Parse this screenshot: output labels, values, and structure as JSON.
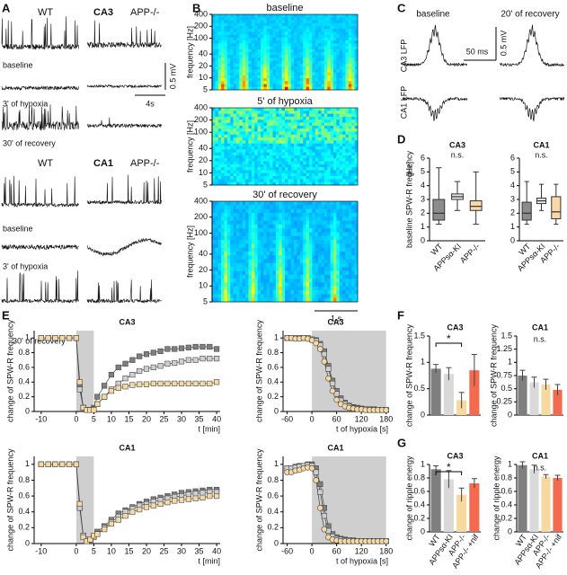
{
  "panel_labels": [
    "A",
    "B",
    "C",
    "D",
    "E",
    "F",
    "G"
  ],
  "panel_a": {
    "ca3": {
      "title": "CA3",
      "genotypes": [
        "WT",
        "APP-/-"
      ],
      "conditions": [
        "baseline",
        "3' of hypoxia",
        "30' of recovery"
      ]
    },
    "ca1": {
      "title": "CA1",
      "genotypes": [
        "WT",
        "APP-/-"
      ],
      "conditions": [
        "baseline",
        "3' of hypoxia",
        "30' of recovery"
      ]
    },
    "scale_voltage": "0.5 mV",
    "scale_time": "4s"
  },
  "panel_b": {
    "scale_time": "1 s"
  },
  "panel_c": {
    "conditions": [
      "baseline",
      "20' of recovery"
    ],
    "rows": [
      "CA3 LFP",
      "CA1 LFP"
    ],
    "scale_time": "50 ms",
    "scale_voltage": "0.5 mV"
  },
  "chart_data": [
    {
      "type": "spectrogram",
      "title": "baseline",
      "ylabel": "frequency [Hz]",
      "ylim": [
        5,
        400
      ],
      "yticks": [
        5,
        10,
        20,
        40,
        100,
        200,
        400
      ],
      "log_y": true
    },
    {
      "type": "spectrogram",
      "title": "5' of hypoxia",
      "ylabel": "frequency [Hz]",
      "ylim": [
        5,
        400
      ],
      "yticks": [
        5,
        10,
        20,
        40,
        100,
        200,
        400
      ],
      "log_y": true
    },
    {
      "type": "spectrogram",
      "title": "30' of recovery",
      "ylabel": "frequency [Hz]",
      "ylim": [
        5,
        400
      ],
      "yticks": [
        5,
        10,
        20,
        40,
        100,
        200,
        400
      ],
      "log_y": true
    },
    {
      "type": "box",
      "title": "CA3",
      "ylabel": "baseline SPW-R frequency",
      "yunit": "[Hz]",
      "annotation": "n.s.",
      "categories": [
        "WT",
        "APPsα-KI",
        "APP-/-"
      ],
      "whislo": [
        1.2,
        2.2,
        1.2
      ],
      "q1": [
        1.5,
        3.0,
        2.2
      ],
      "med": [
        2.0,
        3.2,
        2.5
      ],
      "q3": [
        3.0,
        3.4,
        2.9
      ],
      "whishi": [
        5.3,
        4.3,
        5.0
      ],
      "colors": [
        "#8c8c8c",
        "#e6e6e6",
        "#fad9a8"
      ],
      "ylim": [
        0,
        6
      ],
      "yticks": [
        0,
        1,
        2,
        3,
        4,
        5,
        6
      ]
    },
    {
      "type": "box",
      "title": "CA1",
      "annotation": "n.s.",
      "categories": [
        "WT",
        "APPsα-KI",
        "APP-/-"
      ],
      "whislo": [
        1.2,
        2.2,
        1.2
      ],
      "q1": [
        1.5,
        2.7,
        1.6
      ],
      "med": [
        2.0,
        2.9,
        2.1
      ],
      "q3": [
        2.8,
        3.1,
        3.2
      ],
      "whishi": [
        4.3,
        4.1,
        4.1
      ],
      "colors": [
        "#8c8c8c",
        "#e6e6e6",
        "#fad9a8"
      ],
      "ylim": [
        0,
        6
      ],
      "yticks": [
        0,
        1,
        2,
        3,
        4,
        5,
        6
      ]
    },
    {
      "type": "line",
      "title": "CA3",
      "ylabel": "change of SPW-R frequency",
      "xlabel": "t [min]",
      "shaded_x": [
        0,
        5
      ],
      "x": [
        -10,
        -8,
        -6,
        -4,
        -2,
        0,
        1,
        2,
        3,
        4,
        5,
        6,
        8,
        10,
        12,
        14,
        16,
        18,
        20,
        22,
        24,
        26,
        28,
        30,
        32,
        34,
        36,
        38,
        40
      ],
      "series": [
        {
          "color": "#7f7f7f",
          "marker": "square",
          "values": [
            1,
            1,
            1,
            1,
            1,
            1,
            0.35,
            0.05,
            0.02,
            0.02,
            0.05,
            0.2,
            0.35,
            0.5,
            0.6,
            0.65,
            0.7,
            0.75,
            0.78,
            0.8,
            0.82,
            0.85,
            0.85,
            0.86,
            0.87,
            0.88,
            0.88,
            0.88,
            0.85
          ]
        },
        {
          "color": "#cfcfcf",
          "marker": "square",
          "values": [
            1,
            1,
            1,
            1,
            1,
            1,
            0.3,
            0.05,
            0.02,
            0.02,
            0.03,
            0.1,
            0.2,
            0.3,
            0.38,
            0.45,
            0.5,
            0.55,
            0.58,
            0.6,
            0.62,
            0.65,
            0.66,
            0.68,
            0.7,
            0.7,
            0.72,
            0.72,
            0.72
          ]
        },
        {
          "color": "#f7d9a0",
          "marker": "square",
          "values": [
            1,
            1,
            1,
            1,
            1,
            1,
            0.4,
            0.05,
            0.02,
            0.02,
            0.02,
            0.1,
            0.2,
            0.28,
            0.32,
            0.34,
            0.36,
            0.37,
            0.37,
            0.38,
            0.38,
            0.38,
            0.38,
            0.38,
            0.38,
            0.38,
            0.38,
            0.38,
            0.4
          ]
        }
      ],
      "xlim": [
        -12,
        41
      ],
      "xticks": [
        -10,
        0,
        5,
        10,
        15,
        20,
        25,
        30,
        35,
        40
      ],
      "ylim": [
        0,
        1.1
      ],
      "yticks": [
        0,
        0.2,
        0.4,
        0.6,
        0.8,
        1
      ]
    },
    {
      "type": "line",
      "title": "CA3",
      "ylabel": "change of SPW-R frequency",
      "xlabel": "t of hypoxia [s]",
      "shaded_x": [
        0,
        180
      ],
      "x": [
        -60,
        -50,
        -40,
        -30,
        -20,
        -10,
        0,
        10,
        20,
        30,
        40,
        50,
        60,
        70,
        80,
        90,
        100,
        110,
        120,
        130,
        140,
        150,
        160,
        170,
        180
      ],
      "series": [
        {
          "color": "#7f7f7f",
          "marker": "square",
          "values": [
            1,
            1,
            1,
            1,
            1,
            1,
            0.98,
            0.97,
            0.92,
            0.82,
            0.62,
            0.42,
            0.28,
            0.18,
            0.12,
            0.08,
            0.06,
            0.05,
            0.04,
            0.03,
            0.03,
            0.03,
            0.02,
            0.02,
            0.02
          ]
        },
        {
          "color": "#cfcfcf",
          "marker": "square",
          "values": [
            1,
            1,
            1,
            1,
            1,
            1,
            0.98,
            0.96,
            0.9,
            0.78,
            0.58,
            0.38,
            0.24,
            0.15,
            0.1,
            0.07,
            0.05,
            0.04,
            0.03,
            0.03,
            0.02,
            0.02,
            0.02,
            0.02,
            0.02
          ]
        },
        {
          "color": "#f7d9a0",
          "marker": "circle",
          "values": [
            1,
            1,
            0.99,
            0.99,
            1,
            0.99,
            0.97,
            0.93,
            0.85,
            0.68,
            0.45,
            0.28,
            0.16,
            0.1,
            0.07,
            0.05,
            0.04,
            0.03,
            0.03,
            0.02,
            0.02,
            0.02,
            0.02,
            0.02,
            0.02
          ]
        }
      ],
      "xlim": [
        -70,
        185
      ],
      "xticks": [
        -60,
        0,
        60,
        120,
        180
      ],
      "ylim": [
        0,
        1.1
      ],
      "yticks": [
        0,
        0.2,
        0.4,
        0.6,
        0.8,
        1
      ]
    },
    {
      "type": "line",
      "title": "CA1",
      "ylabel": "change of SPW-R frequency",
      "xlabel": "t [min]",
      "shaded_x": [
        0,
        5
      ],
      "x": [
        -10,
        -8,
        -6,
        -4,
        -2,
        0,
        1,
        2,
        3,
        4,
        5,
        6,
        8,
        10,
        12,
        14,
        16,
        18,
        20,
        22,
        24,
        26,
        28,
        30,
        32,
        34,
        36,
        38,
        40
      ],
      "series": [
        {
          "color": "#7f7f7f",
          "marker": "square",
          "values": [
            1,
            1,
            1,
            1,
            1,
            1,
            0.45,
            0.1,
            0.05,
            0.05,
            0.08,
            0.15,
            0.22,
            0.3,
            0.38,
            0.42,
            0.46,
            0.5,
            0.53,
            0.56,
            0.58,
            0.6,
            0.62,
            0.64,
            0.65,
            0.66,
            0.67,
            0.68,
            0.68
          ]
        },
        {
          "color": "#cfcfcf",
          "marker": "square",
          "values": [
            1,
            1,
            1,
            1,
            1,
            1,
            0.45,
            0.1,
            0.05,
            0.05,
            0.08,
            0.12,
            0.2,
            0.27,
            0.34,
            0.4,
            0.44,
            0.48,
            0.5,
            0.53,
            0.55,
            0.57,
            0.59,
            0.6,
            0.62,
            0.63,
            0.64,
            0.65,
            0.65
          ]
        },
        {
          "color": "#f7d9a0",
          "marker": "square",
          "values": [
            1,
            1,
            1,
            1,
            1,
            1,
            0.5,
            0.08,
            0.03,
            0.05,
            0.1,
            0.12,
            0.18,
            0.25,
            0.3,
            0.35,
            0.4,
            0.43,
            0.46,
            0.48,
            0.5,
            0.52,
            0.54,
            0.55,
            0.56,
            0.57,
            0.58,
            0.6,
            0.6
          ]
        }
      ],
      "xlim": [
        -12,
        41
      ],
      "xticks": [
        -10,
        0,
        5,
        10,
        15,
        20,
        25,
        30,
        35,
        40
      ],
      "ylim": [
        0,
        1.1
      ],
      "yticks": [
        0,
        0.2,
        0.4,
        0.6,
        0.8,
        1
      ]
    },
    {
      "type": "line",
      "title": "CA1",
      "ylabel": "change of SPW-R frequency",
      "xlabel": "t of hypoxia [s]",
      "shaded_x": [
        0,
        180
      ],
      "x": [
        -60,
        -50,
        -40,
        -30,
        -20,
        -10,
        0,
        10,
        20,
        30,
        40,
        50,
        60,
        70,
        80,
        90,
        100,
        110,
        120,
        130,
        140,
        150,
        160,
        170,
        180
      ],
      "series": [
        {
          "color": "#7f7f7f",
          "marker": "square",
          "values": [
            0.95,
            0.95,
            0.97,
            0.98,
            0.98,
            1,
            1,
            0.95,
            0.75,
            0.45,
            0.22,
            0.12,
            0.08,
            0.06,
            0.05,
            0.04,
            0.04,
            0.03,
            0.03,
            0.03,
            0.03,
            0.03,
            0.03,
            0.03,
            0.03
          ]
        },
        {
          "color": "#cfcfcf",
          "marker": "square",
          "values": [
            0.95,
            0.95,
            0.96,
            0.97,
            0.98,
            0.99,
            0.98,
            0.9,
            0.65,
            0.35,
            0.16,
            0.09,
            0.06,
            0.05,
            0.04,
            0.04,
            0.03,
            0.03,
            0.03,
            0.03,
            0.03,
            0.03,
            0.03,
            0.03,
            0.03
          ]
        },
        {
          "color": "#f7d9a0",
          "marker": "circle",
          "values": [
            0.9,
            0.9,
            0.92,
            0.93,
            0.95,
            0.96,
            0.95,
            0.8,
            0.45,
            0.18,
            0.08,
            0.05,
            0.04,
            0.03,
            0.03,
            0.03,
            0.03,
            0.03,
            0.03,
            0.03,
            0.03,
            0.03,
            0.03,
            0.03,
            0.03
          ]
        }
      ],
      "xlim": [
        -70,
        185
      ],
      "xticks": [
        -60,
        0,
        60,
        120,
        180
      ],
      "ylim": [
        0,
        1.1
      ],
      "yticks": [
        0,
        0.2,
        0.4,
        0.6,
        0.8,
        1
      ]
    },
    {
      "type": "bar",
      "title": "CA3",
      "ylabel": "change of SPW-R frequency",
      "annotation": "*",
      "categories": [
        null,
        null,
        null,
        null
      ],
      "values": [
        0.88,
        0.78,
        0.28,
        0.85
      ],
      "errors": [
        0.08,
        0.12,
        0.15,
        0.3
      ],
      "colors": [
        "#7f7f7f",
        "#d9d9d9",
        "#f7d9a0",
        "#f26b4f"
      ],
      "ylim": [
        0,
        1.5
      ],
      "yticks": [
        0,
        0.5,
        1,
        1.5
      ]
    },
    {
      "type": "bar",
      "title": "CA1",
      "ylabel": "change of SPW-R frequency",
      "annotation": "n.s.",
      "categories": [
        null,
        null,
        null,
        null
      ],
      "values": [
        0.75,
        0.62,
        0.58,
        0.48
      ],
      "errors": [
        0.1,
        0.1,
        0.1,
        0.1
      ],
      "colors": [
        "#7f7f7f",
        "#d9d9d9",
        "#f7d9a0",
        "#f26b4f"
      ],
      "ylim": [
        0,
        1.5
      ],
      "yticks": [
        0,
        0.25,
        0.5,
        0.75,
        1,
        1.25,
        1.5
      ]
    },
    {
      "type": "bar",
      "title": "CA3",
      "ylabel": "change of ripple energy",
      "annotation": "*",
      "categories": [
        "WT",
        "APPsα-KI",
        "APP-/-",
        "APP-/- +nif"
      ],
      "values": [
        0.93,
        0.78,
        0.55,
        0.72
      ],
      "errors": [
        0.05,
        0.13,
        0.1,
        0.07
      ],
      "colors": [
        "#7f7f7f",
        "#d9d9d9",
        "#f7d9a0",
        "#f26b4f"
      ],
      "ylim": [
        0,
        1
      ],
      "yticks": [
        0,
        0.2,
        0.4,
        0.6,
        0.8,
        1
      ]
    },
    {
      "type": "bar",
      "title": "CA1",
      "ylabel": "change of ripple energy",
      "annotation": "n.s.",
      "categories": [
        "WT",
        "APPsα-KI",
        "APP-/-",
        "APP-/- +nif"
      ],
      "values": [
        0.99,
        0.93,
        0.82,
        0.8
      ],
      "errors": [
        0.05,
        0.06,
        0.03,
        0.04
      ],
      "colors": [
        "#7f7f7f",
        "#d9d9d9",
        "#f7d9a0",
        "#f26b4f"
      ],
      "ylim": [
        0,
        1
      ],
      "yticks": [
        0,
        0.2,
        0.4,
        0.6,
        0.8,
        1
      ]
    }
  ]
}
